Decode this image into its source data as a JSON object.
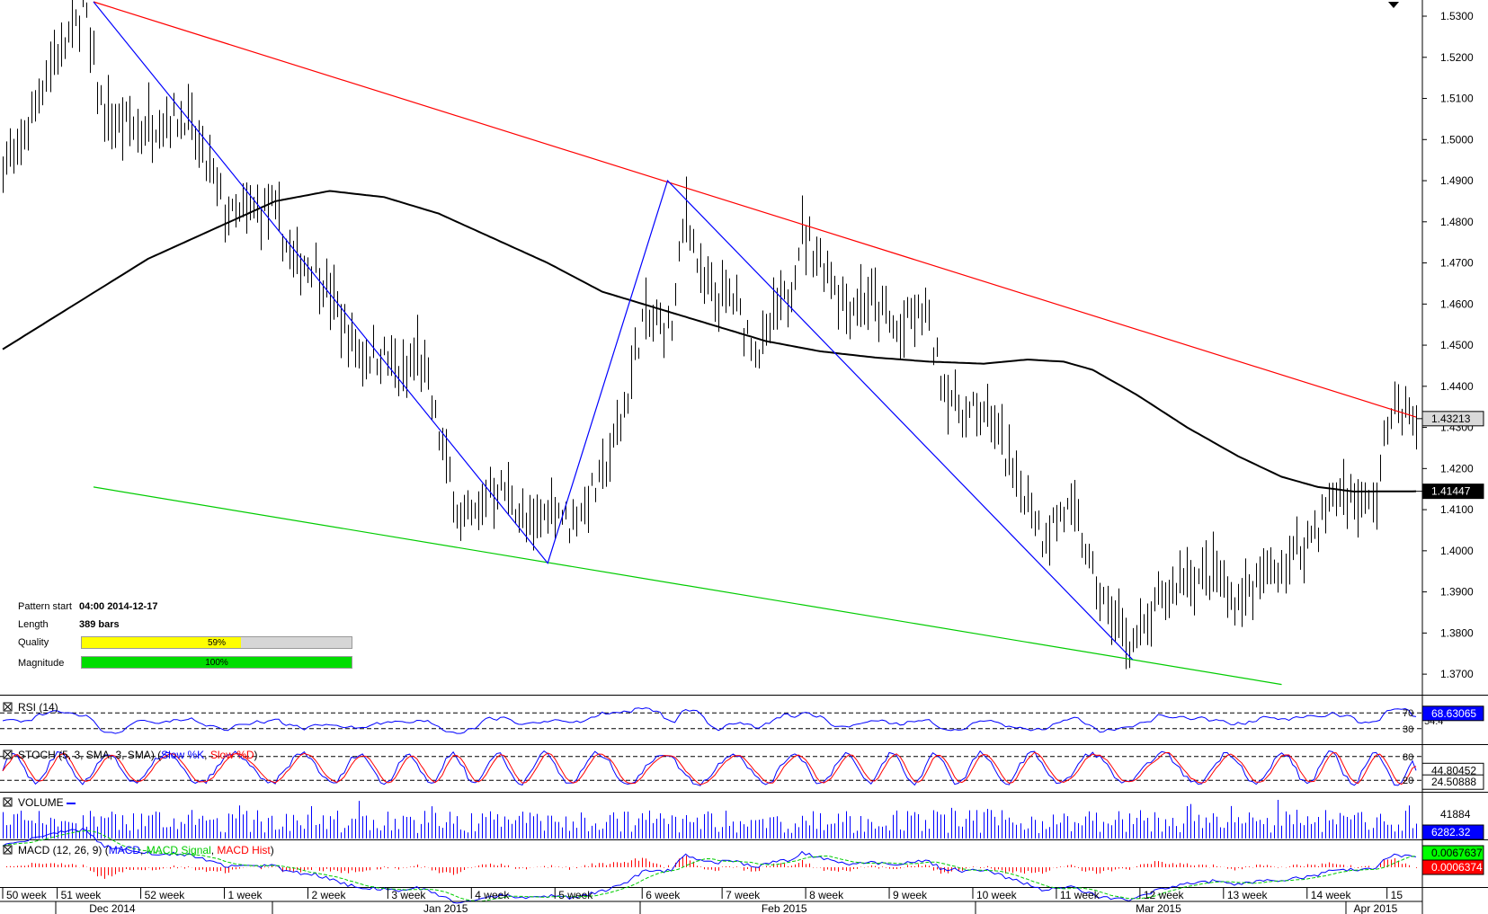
{
  "chart_data": {
    "type": "candlestick",
    "instrument_hint": "",
    "price_axis": {
      "ylim": [
        1.365,
        1.5335
      ],
      "ticks": [
        "1.5300",
        "1.5200",
        "1.5100",
        "1.5000",
        "1.4900",
        "1.4800",
        "1.4700",
        "1.4600",
        "1.4500",
        "1.4400",
        "1.4300",
        "1.4200",
        "1.4100",
        "1.4000",
        "1.3900",
        "1.3800",
        "1.3700"
      ],
      "last_price_label": "1.43213",
      "ma_label": "1.41447",
      "last_price": 1.43213,
      "ma_value": 1.41447
    },
    "price_anchors": [
      [
        0,
        1.495
      ],
      [
        4,
        1.496
      ],
      [
        10,
        1.512
      ],
      [
        14,
        1.52
      ],
      [
        20,
        1.528
      ],
      [
        22,
        1.533
      ],
      [
        25,
        1.518
      ],
      [
        28,
        1.505
      ],
      [
        32,
        1.503
      ],
      [
        38,
        1.503
      ],
      [
        44,
        1.505
      ],
      [
        50,
        1.506
      ],
      [
        54,
        1.498
      ],
      [
        58,
        1.49
      ],
      [
        62,
        1.481
      ],
      [
        68,
        1.482
      ],
      [
        74,
        1.483
      ],
      [
        80,
        1.47
      ],
      [
        86,
        1.47
      ],
      [
        92,
        1.458
      ],
      [
        98,
        1.448
      ],
      [
        104,
        1.448
      ],
      [
        110,
        1.442
      ],
      [
        114,
        1.448
      ],
      [
        118,
        1.436
      ],
      [
        122,
        1.421
      ],
      [
        126,
        1.408
      ],
      [
        130,
        1.408
      ],
      [
        134,
        1.416
      ],
      [
        140,
        1.413
      ],
      [
        144,
        1.405
      ],
      [
        148,
        1.408
      ],
      [
        152,
        1.412
      ],
      [
        156,
        1.406
      ],
      [
        160,
        1.412
      ],
      [
        164,
        1.416
      ],
      [
        168,
        1.426
      ],
      [
        172,
        1.438
      ],
      [
        176,
        1.456
      ],
      [
        180,
        1.455
      ],
      [
        184,
        1.454
      ],
      [
        188,
        1.484
      ],
      [
        192,
        1.466
      ],
      [
        196,
        1.46
      ],
      [
        200,
        1.462
      ],
      [
        204,
        1.455
      ],
      [
        208,
        1.448
      ],
      [
        212,
        1.456
      ],
      [
        216,
        1.462
      ],
      [
        220,
        1.478
      ],
      [
        224,
        1.472
      ],
      [
        228,
        1.468
      ],
      [
        232,
        1.46
      ],
      [
        238,
        1.462
      ],
      [
        242,
        1.458
      ],
      [
        246,
        1.453
      ],
      [
        250,
        1.456
      ],
      [
        254,
        1.458
      ],
      [
        258,
        1.442
      ],
      [
        262,
        1.436
      ],
      [
        266,
        1.433
      ],
      [
        270,
        1.435
      ],
      [
        274,
        1.428
      ],
      [
        278,
        1.418
      ],
      [
        282,
        1.414
      ],
      [
        286,
        1.404
      ],
      [
        290,
        1.408
      ],
      [
        294,
        1.41
      ],
      [
        298,
        1.4
      ],
      [
        302,
        1.388
      ],
      [
        306,
        1.383
      ],
      [
        310,
        1.377
      ],
      [
        314,
        1.38
      ],
      [
        318,
        1.387
      ],
      [
        322,
        1.39
      ],
      [
        326,
        1.395
      ],
      [
        330,
        1.393
      ],
      [
        334,
        1.394
      ],
      [
        338,
        1.388
      ],
      [
        342,
        1.389
      ],
      [
        346,
        1.393
      ],
      [
        350,
        1.395
      ],
      [
        354,
        1.397
      ],
      [
        358,
        1.402
      ],
      [
        362,
        1.406
      ],
      [
        366,
        1.414
      ],
      [
        370,
        1.414
      ],
      [
        374,
        1.41
      ],
      [
        378,
        1.413
      ],
      [
        380,
        1.425
      ],
      [
        382,
        1.436
      ],
      [
        384,
        1.434
      ],
      [
        389,
        1.4321
      ]
    ],
    "sma_anchors": [
      [
        0,
        1.449
      ],
      [
        20,
        1.46
      ],
      [
        40,
        1.471
      ],
      [
        60,
        1.479
      ],
      [
        75,
        1.485
      ],
      [
        90,
        1.4875
      ],
      [
        105,
        1.486
      ],
      [
        120,
        1.482
      ],
      [
        135,
        1.476
      ],
      [
        150,
        1.47
      ],
      [
        165,
        1.463
      ],
      [
        180,
        1.459
      ],
      [
        195,
        1.455
      ],
      [
        210,
        1.451
      ],
      [
        225,
        1.4485
      ],
      [
        240,
        1.447
      ],
      [
        255,
        1.446
      ],
      [
        270,
        1.4455
      ],
      [
        282,
        1.4465
      ],
      [
        292,
        1.446
      ],
      [
        300,
        1.444
      ],
      [
        312,
        1.438
      ],
      [
        326,
        1.43
      ],
      [
        340,
        1.423
      ],
      [
        352,
        1.418
      ],
      [
        362,
        1.4155
      ],
      [
        372,
        1.4144
      ],
      [
        389,
        1.41447
      ]
    ],
    "trendlines": [
      {
        "name": "resistance",
        "color": "#ff0000",
        "points": [
          [
            25,
            1.5335
          ],
          [
            389,
            1.4325
          ]
        ]
      },
      {
        "name": "support",
        "color": "#00cc00",
        "points": [
          [
            25,
            1.4155
          ],
          [
            352,
            1.3675
          ]
        ]
      },
      {
        "name": "wave",
        "color": "#0000ff",
        "points": [
          [
            25,
            1.5335
          ],
          [
            150,
            1.397
          ],
          [
            183,
            1.49
          ],
          [
            311,
            1.3735
          ]
        ]
      }
    ],
    "x_axis": {
      "week_labels": [
        "50 week",
        "51 week",
        "52 week",
        "1 week",
        "2 week",
        "3 week",
        "4 week",
        "5 week",
        "6 week",
        "7 week",
        "8 week",
        "9 week",
        "10 week",
        "11 week",
        "12 week",
        "13 week",
        "14 week",
        "15"
      ],
      "week_bar_index": [
        0,
        15,
        38,
        61,
        84,
        106,
        129,
        152,
        176,
        198,
        221,
        244,
        267,
        290,
        313,
        336,
        359,
        381
      ],
      "month_labels": [
        "Dec 2014",
        "Jan 2015",
        "Feb 2015",
        "Mar 2015",
        "Apr 2015"
      ],
      "month_bar_index": [
        30,
        122,
        215,
        318,
        378
      ],
      "bars_total": 390
    },
    "indicators": {
      "rsi": {
        "label": "RSI (14)",
        "levels": [
          70,
          30
        ],
        "range": [
          0,
          100
        ],
        "last": "68.63065",
        "second": "54.4"
      },
      "stoch": {
        "label_prefix": "STOCH (5, 3, SMA, 3, SMA) (",
        "label_k": "Slow %K",
        "label_sep": ", ",
        "label_d": "Slow %D",
        "label_suffix": ")",
        "levels": [
          80,
          20
        ],
        "range": [
          0,
          100
        ],
        "last_k": "44.80452",
        "last_d": "24.50888"
      },
      "volume": {
        "label": "VOLUME",
        "scale_label": "41884",
        "last": "6282.32"
      },
      "macd": {
        "label_prefix": "MACD (12, 26, 9) (",
        "label_macd": "MACD",
        "label_sep1": ", ",
        "label_signal": "MACD Signal",
        "label_sep2": ", ",
        "label_hist": "MACD Hist",
        "label_suffix": ")",
        "last_macd": "0.0067637",
        "last_signal": "0.0006374"
      }
    }
  },
  "pattern_info": {
    "start_label": "Pattern start",
    "start_value": "04:00 2014-12-17",
    "length_label": "Length",
    "length_value": "389 bars",
    "quality_label": "Quality",
    "quality_value": "59%",
    "quality_fraction": 0.59,
    "magnitude_label": "Magnitude",
    "magnitude_value": "100%",
    "magnitude_fraction": 1.0
  },
  "colors": {
    "candles": "#000000",
    "sma": "#000000",
    "resistance": "#ff0000",
    "support": "#00cc00",
    "wave": "#0000ff",
    "rsi_line": "#0000ff",
    "stoch_k": "#0000ff",
    "stoch_d": "#ff0000",
    "volume": "#0000ff",
    "macd": "#0000ff",
    "macd_signal": "#00cc00",
    "macd_hist": "#ff0000",
    "quality_fill": "#ffff00",
    "magnitude_fill": "#00dd00",
    "label_blue_bg": "#0000ff",
    "label_green_bg": "#00ff00",
    "label_red_bg": "#ff0000"
  }
}
